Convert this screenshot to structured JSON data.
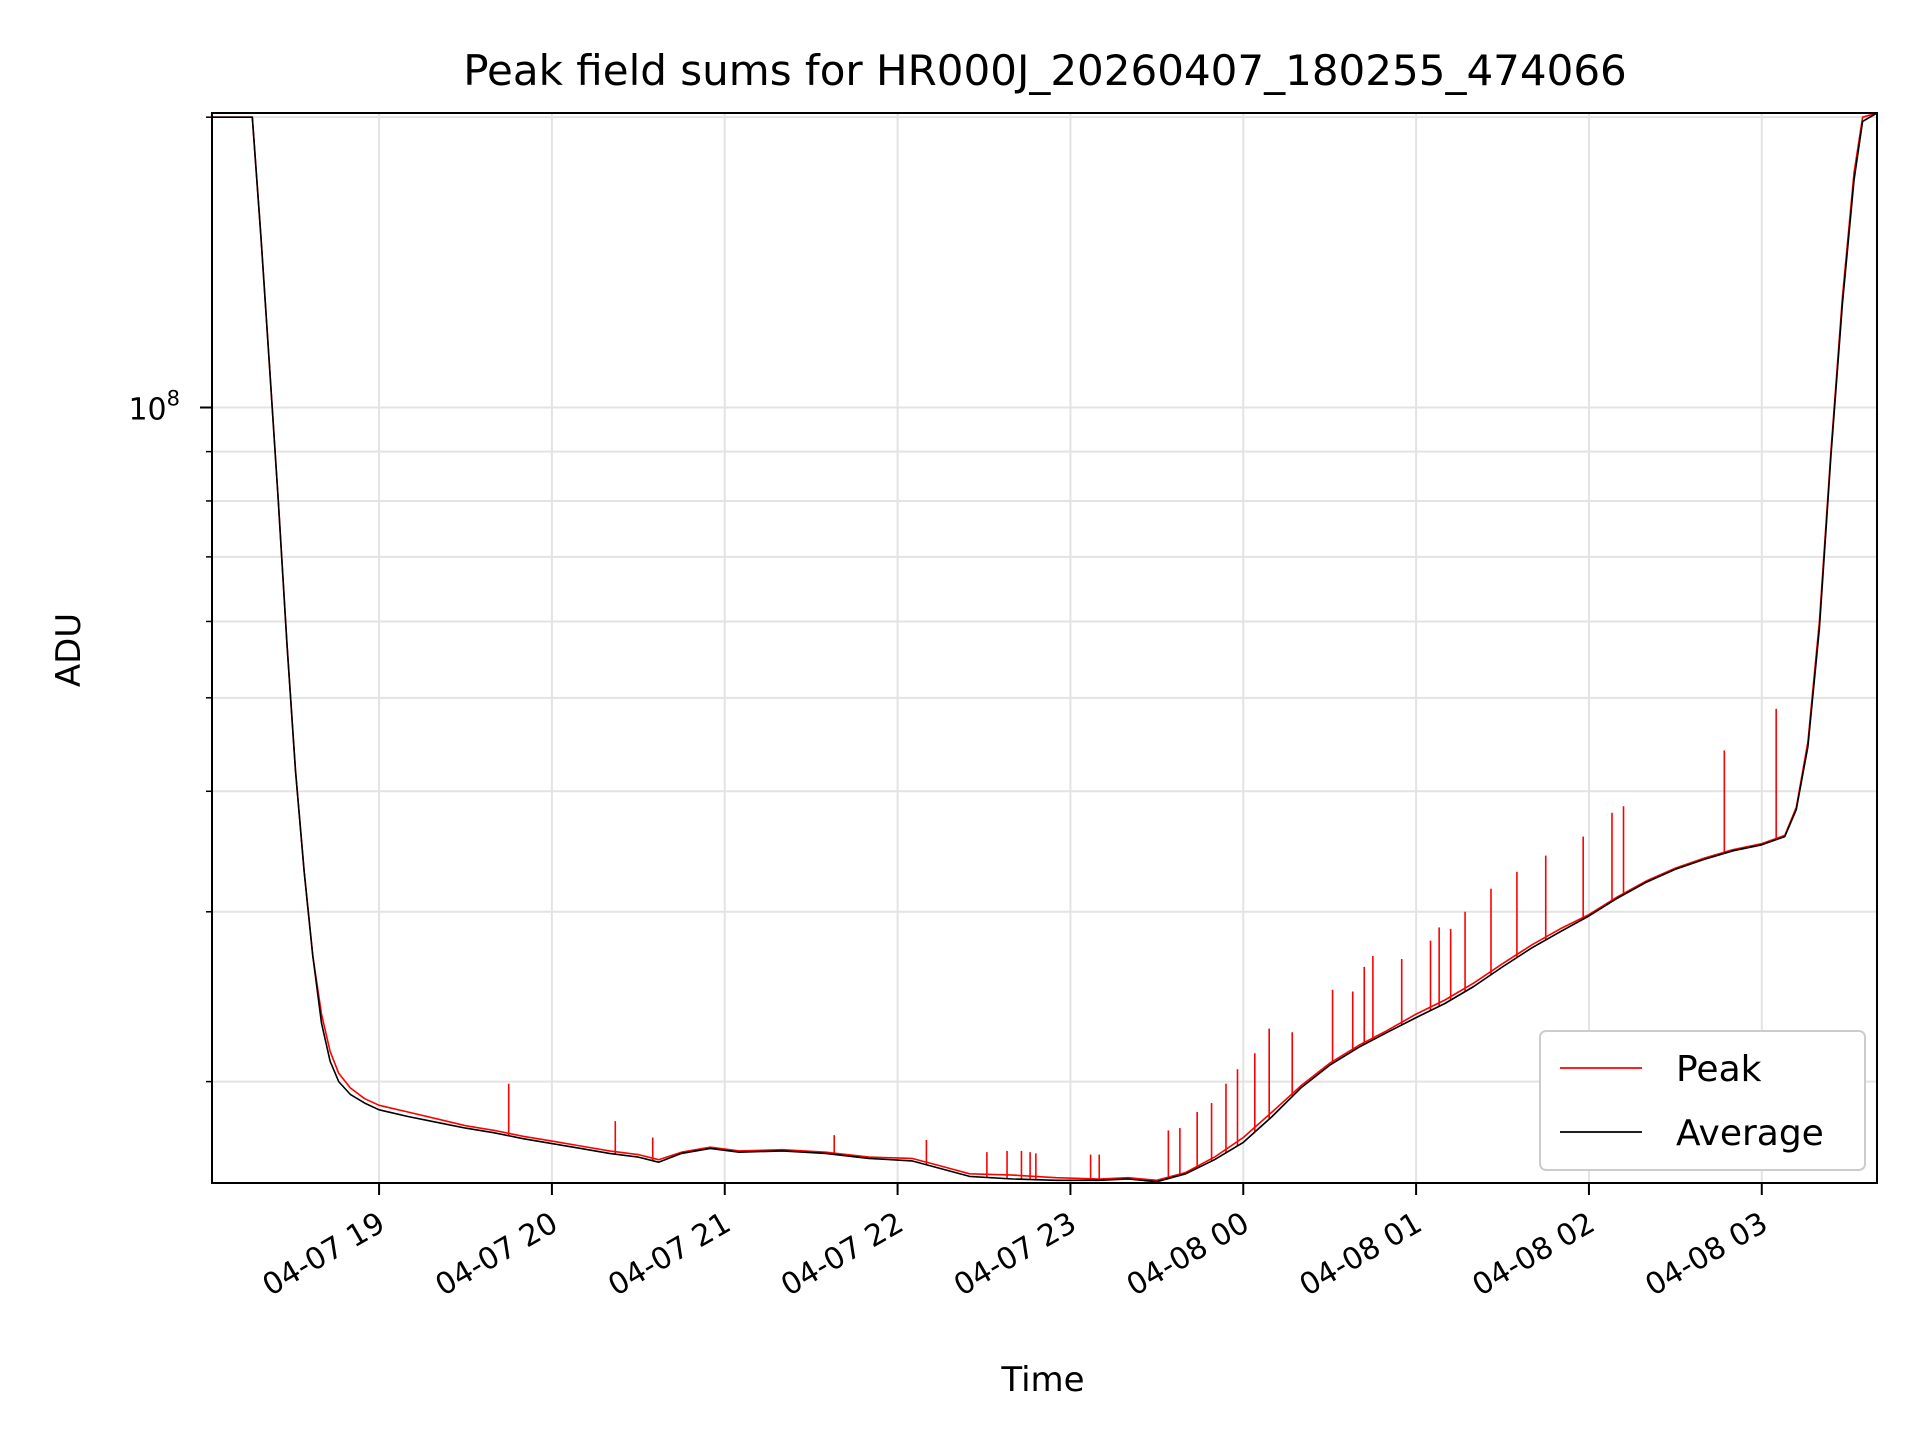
{
  "chart_data": {
    "type": "line",
    "title": "Peak field sums for HR000J_20260407_180255_474066",
    "xlabel": "Time",
    "ylabel": "ADU",
    "yscale": "log",
    "ylim": [
      15700000,
      202000000
    ],
    "y_major_tick": {
      "value": 100000000,
      "base": "10",
      "exponent": "8"
    },
    "y_minor_ticks": [
      20000000,
      30000000,
      40000000,
      50000000,
      60000000,
      70000000,
      80000000,
      90000000,
      200000000
    ],
    "xlim": [
      "2026-04-07T18:02:00",
      "2026-04-08T03:40:00"
    ],
    "x_ticks": [
      {
        "t": "2026-04-07T19:00",
        "label": "04-07 19"
      },
      {
        "t": "2026-04-07T20:00",
        "label": "04-07 20"
      },
      {
        "t": "2026-04-07T21:00",
        "label": "04-07 21"
      },
      {
        "t": "2026-04-07T22:00",
        "label": "04-07 22"
      },
      {
        "t": "2026-04-07T23:00",
        "label": "04-07 23"
      },
      {
        "t": "2026-04-08T00:00",
        "label": "04-08 00"
      },
      {
        "t": "2026-04-08T01:00",
        "label": "04-08 01"
      },
      {
        "t": "2026-04-08T02:00",
        "label": "04-08 02"
      },
      {
        "t": "2026-04-08T03:00",
        "label": "04-08 03"
      }
    ],
    "grid": true,
    "legend_position": "lower-right",
    "series": [
      {
        "name": "Peak",
        "color": "#ff0000",
        "x": [
          "2026-04-07T18:02",
          "2026-04-07T18:16",
          "2026-04-07T18:19",
          "2026-04-07T18:22",
          "2026-04-07T18:25",
          "2026-04-07T18:28",
          "2026-04-07T18:31",
          "2026-04-07T18:34",
          "2026-04-07T18:37",
          "2026-04-07T18:40",
          "2026-04-07T18:43",
          "2026-04-07T18:46",
          "2026-04-07T18:50",
          "2026-04-07T18:55",
          "2026-04-07T19:00",
          "2026-04-07T19:10",
          "2026-04-07T19:20",
          "2026-04-07T19:30",
          "2026-04-07T19:40",
          "2026-04-07T19:50",
          "2026-04-07T20:00",
          "2026-04-07T20:10",
          "2026-04-07T20:20",
          "2026-04-07T20:30",
          "2026-04-07T20:37",
          "2026-04-07T20:45",
          "2026-04-07T20:55",
          "2026-04-07T21:05",
          "2026-04-07T21:20",
          "2026-04-07T21:35",
          "2026-04-07T21:50",
          "2026-04-07T22:05",
          "2026-04-07T22:15",
          "2026-04-07T22:25",
          "2026-04-07T22:40",
          "2026-04-07T22:55",
          "2026-04-07T23:10",
          "2026-04-07T23:20",
          "2026-04-07T23:30",
          "2026-04-07T23:40",
          "2026-04-07T23:50",
          "2026-04-08T00:00",
          "2026-04-08T00:10",
          "2026-04-08T00:20",
          "2026-04-08T00:30",
          "2026-04-08T00:40",
          "2026-04-08T00:50",
          "2026-04-08T01:00",
          "2026-04-08T01:10",
          "2026-04-08T01:20",
          "2026-04-08T01:30",
          "2026-04-08T01:40",
          "2026-04-08T01:50",
          "2026-04-08T02:00",
          "2026-04-08T02:10",
          "2026-04-08T02:20",
          "2026-04-08T02:30",
          "2026-04-08T02:40",
          "2026-04-08T02:50",
          "2026-04-08T03:00",
          "2026-04-08T03:08",
          "2026-04-08T03:12",
          "2026-04-08T03:16",
          "2026-04-08T03:20",
          "2026-04-08T03:24",
          "2026-04-08T03:28",
          "2026-04-08T03:32",
          "2026-04-08T03:35",
          "2026-04-08T03:40"
        ],
        "values": [
          200000000,
          200000000,
          150000000,
          110000000,
          80000000,
          57000000,
          42000000,
          33000000,
          27000000,
          23500000,
          21500000,
          20400000,
          19700000,
          19200000,
          18900000,
          18600000,
          18300000,
          18000000,
          17800000,
          17550000,
          17350000,
          17150000,
          16950000,
          16800000,
          16600000,
          16900000,
          17100000,
          16950000,
          17000000,
          16900000,
          16700000,
          16650000,
          16350000,
          16050000,
          16000000,
          15900000,
          15850000,
          15900000,
          15800000,
          16100000,
          16700000,
          17500000,
          18600000,
          19800000,
          20900000,
          21800000,
          22600000,
          23500000,
          24300000,
          25300000,
          26500000,
          27700000,
          28800000,
          29800000,
          31100000,
          32300000,
          33300000,
          34100000,
          34800000,
          35300000,
          36000000,
          38500000,
          45000000,
          60000000,
          90000000,
          130000000,
          175000000,
          200000000,
          202000000
        ]
      },
      {
        "name": "Average",
        "color": "#000000",
        "x": [
          "2026-04-07T18:02",
          "2026-04-07T18:16",
          "2026-04-07T18:19",
          "2026-04-07T18:22",
          "2026-04-07T18:25",
          "2026-04-07T18:28",
          "2026-04-07T18:31",
          "2026-04-07T18:34",
          "2026-04-07T18:37",
          "2026-04-07T18:40",
          "2026-04-07T18:43",
          "2026-04-07T18:46",
          "2026-04-07T18:50",
          "2026-04-07T18:55",
          "2026-04-07T19:00",
          "2026-04-07T19:10",
          "2026-04-07T19:20",
          "2026-04-07T19:30",
          "2026-04-07T19:40",
          "2026-04-07T19:50",
          "2026-04-07T20:00",
          "2026-04-07T20:10",
          "2026-04-07T20:20",
          "2026-04-07T20:30",
          "2026-04-07T20:37",
          "2026-04-07T20:45",
          "2026-04-07T20:55",
          "2026-04-07T21:05",
          "2026-04-07T21:20",
          "2026-04-07T21:35",
          "2026-04-07T21:50",
          "2026-04-07T22:05",
          "2026-04-07T22:15",
          "2026-04-07T22:25",
          "2026-04-07T22:40",
          "2026-04-07T22:55",
          "2026-04-07T23:10",
          "2026-04-07T23:20",
          "2026-04-07T23:30",
          "2026-04-07T23:40",
          "2026-04-07T23:50",
          "2026-04-08T00:00",
          "2026-04-08T00:10",
          "2026-04-08T00:20",
          "2026-04-08T00:30",
          "2026-04-08T00:40",
          "2026-04-08T00:50",
          "2026-04-08T01:00",
          "2026-04-08T01:10",
          "2026-04-08T01:20",
          "2026-04-08T01:30",
          "2026-04-08T01:40",
          "2026-04-08T01:50",
          "2026-04-08T02:00",
          "2026-04-08T02:10",
          "2026-04-08T02:20",
          "2026-04-08T02:30",
          "2026-04-08T02:40",
          "2026-04-08T02:50",
          "2026-04-08T03:00",
          "2026-04-08T03:08",
          "2026-04-08T03:12",
          "2026-04-08T03:16",
          "2026-04-08T03:20",
          "2026-04-08T03:24",
          "2026-04-08T03:28",
          "2026-04-08T03:32",
          "2026-04-08T03:35",
          "2026-04-08T03:40"
        ],
        "values": [
          200000000,
          200000000,
          150000000,
          110000000,
          80000000,
          57000000,
          42000000,
          33000000,
          27000000,
          23000000,
          21000000,
          20000000,
          19400000,
          19000000,
          18700000,
          18400000,
          18150000,
          17900000,
          17700000,
          17450000,
          17250000,
          17050000,
          16850000,
          16700000,
          16500000,
          16850000,
          17050000,
          16900000,
          16950000,
          16850000,
          16650000,
          16550000,
          16250000,
          15950000,
          15850000,
          15800000,
          15800000,
          15850000,
          15750000,
          16050000,
          16600000,
          17300000,
          18400000,
          19700000,
          20800000,
          21700000,
          22500000,
          23300000,
          24100000,
          25100000,
          26300000,
          27500000,
          28600000,
          29700000,
          31000000,
          32200000,
          33200000,
          34000000,
          34700000,
          35200000,
          35900000,
          38300000,
          44500000,
          59000000,
          89000000,
          128000000,
          172000000,
          198000000,
          202000000
        ]
      }
    ],
    "peak_spikes": {
      "x": [
        "2026-04-07T19:45",
        "2026-04-07T20:22",
        "2026-04-07T20:35",
        "2026-04-07T21:38",
        "2026-04-07T22:10",
        "2026-04-07T22:31",
        "2026-04-07T22:38",
        "2026-04-07T22:43",
        "2026-04-07T22:46",
        "2026-04-07T22:48",
        "2026-04-07T23:07",
        "2026-04-07T23:10",
        "2026-04-07T23:34",
        "2026-04-07T23:38",
        "2026-04-07T23:44",
        "2026-04-07T23:49",
        "2026-04-07T23:54",
        "2026-04-07T23:58",
        "2026-04-08T00:04",
        "2026-04-08T00:09",
        "2026-04-08T00:17",
        "2026-04-08T00:31",
        "2026-04-08T00:38",
        "2026-04-08T00:42",
        "2026-04-08T00:45",
        "2026-04-08T00:55",
        "2026-04-08T01:05",
        "2026-04-08T01:08",
        "2026-04-08T01:12",
        "2026-04-08T01:17",
        "2026-04-08T01:26",
        "2026-04-08T01:35",
        "2026-04-08T01:45",
        "2026-04-08T01:58",
        "2026-04-08T02:08",
        "2026-04-08T02:12",
        "2026-04-08T02:47",
        "2026-04-08T03:05"
      ],
      "values": [
        19900000,
        18200000,
        17500000,
        17600000,
        17400000,
        16900000,
        16950000,
        16950000,
        16900000,
        16850000,
        16800000,
        16800000,
        17800000,
        17900000,
        18600000,
        19000000,
        19900000,
        20600000,
        21400000,
        22700000,
        22500000,
        24900000,
        24800000,
        26300000,
        27000000,
        26800000,
        28000000,
        28900000,
        28800000,
        30000000,
        31700000,
        33000000,
        34300000,
        35900000,
        38000000,
        38600000,
        44100000,
        48700000
      ]
    }
  },
  "legend": {
    "items": [
      {
        "label": "Peak",
        "color": "#ff0000"
      },
      {
        "label": "Average",
        "color": "#000000"
      }
    ]
  }
}
